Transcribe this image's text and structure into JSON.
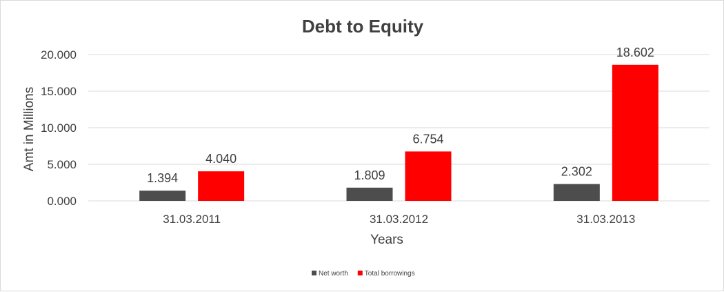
{
  "chart_data": {
    "type": "bar",
    "title": "Debt to Equity",
    "xlabel": "Years",
    "ylabel": "Amt in Millions",
    "categories": [
      "31.03.2011",
      "31.03.2012",
      "31.03.2013"
    ],
    "series": [
      {
        "name": "Net worth",
        "color": "#4d4d4d",
        "values": [
          1.394,
          1.809,
          2.302
        ],
        "labels": [
          "1.394",
          "1.809",
          "2.302"
        ]
      },
      {
        "name": "Total borrowings",
        "color": "#ff0000",
        "values": [
          4.04,
          6.754,
          18.602
        ],
        "labels": [
          "4.040",
          "6.754",
          "18.602"
        ]
      }
    ],
    "ylim": [
      0,
      20
    ],
    "yticks": [
      0,
      5,
      10,
      15,
      20
    ],
    "ytick_labels": [
      "0.000",
      "5.000",
      "10.000",
      "15.000",
      "20.000"
    ],
    "grid": true,
    "legend_position": "bottom"
  }
}
